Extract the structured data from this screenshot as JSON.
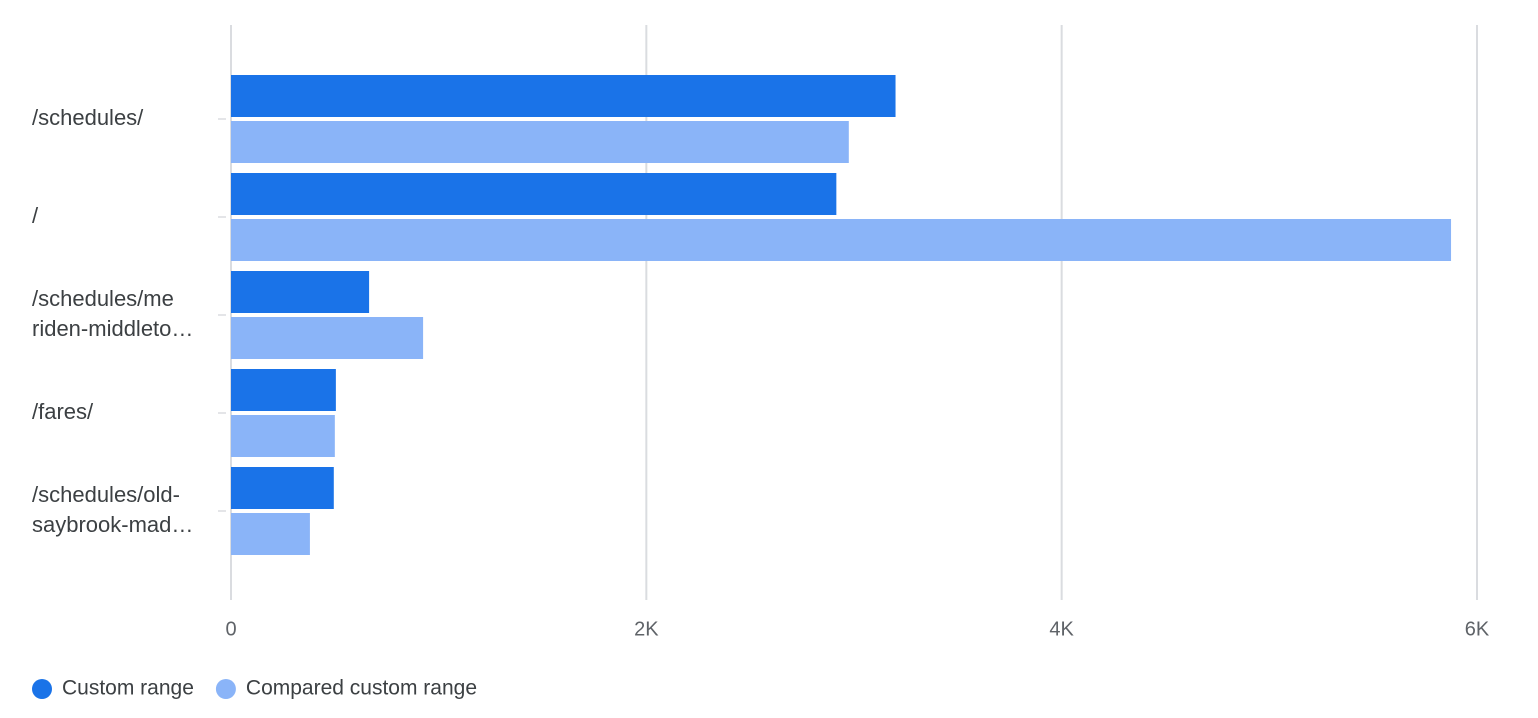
{
  "chart_data": {
    "type": "bar",
    "orientation": "horizontal",
    "categories": [
      [
        "/schedules/"
      ],
      [
        "/"
      ],
      [
        "/schedules/me",
        "riden-middleto…"
      ],
      [
        "/fares/"
      ],
      [
        "/schedules/old-",
        "saybrook-mad…"
      ]
    ],
    "series": [
      {
        "name": "Custom range",
        "color": "#1a73e8",
        "values": [
          3200,
          2915,
          665,
          505,
          495
        ]
      },
      {
        "name": "Compared custom range",
        "color": "#8ab4f8",
        "values": [
          2975,
          5875,
          925,
          500,
          380
        ]
      }
    ],
    "xlim": [
      0,
      6000
    ],
    "ticks": [
      {
        "value": 0,
        "label": "0"
      },
      {
        "value": 2000,
        "label": "2K"
      },
      {
        "value": 4000,
        "label": "4K"
      },
      {
        "value": 6000,
        "label": "6K"
      }
    ],
    "grid": true,
    "legend_position": "bottom-left",
    "title": "",
    "xlabel": "",
    "ylabel": ""
  }
}
